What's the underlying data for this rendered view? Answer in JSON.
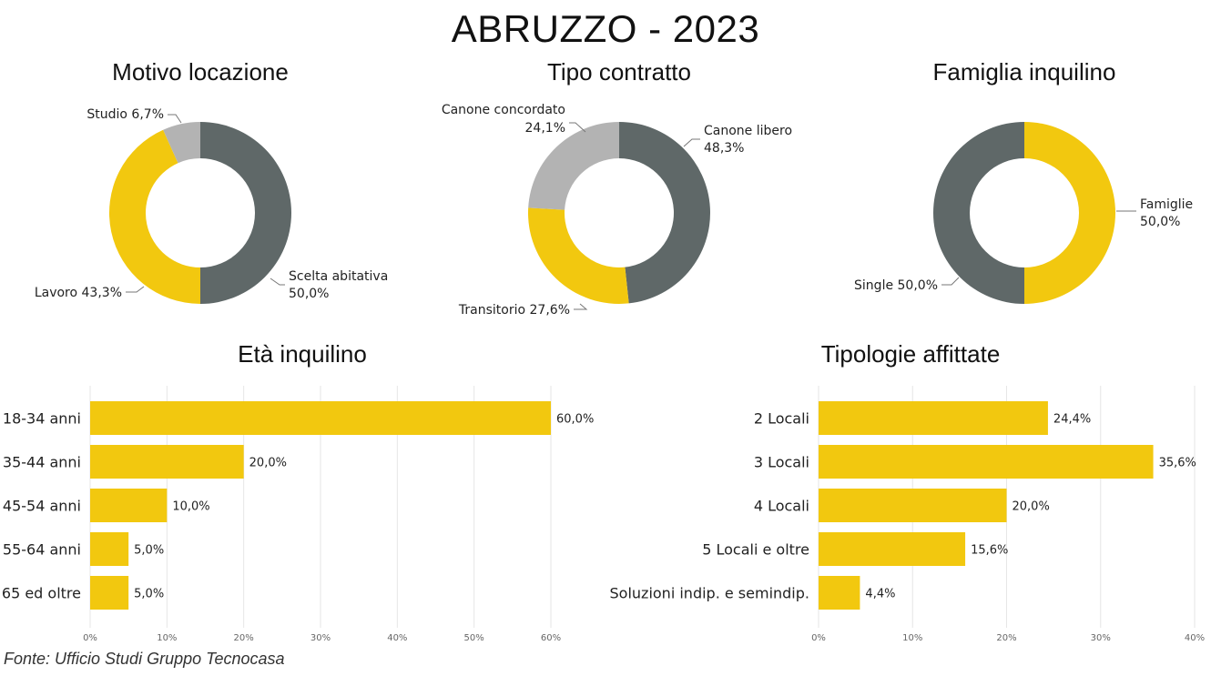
{
  "title": "ABRUZZO - 2023",
  "source": "Fonte: Ufficio Studi Gruppo Tecnocasa",
  "colors": {
    "dark": "#5f6868",
    "yellow": "#f2c80f",
    "light": "#b3b3b3",
    "grid": "#e6e6e6",
    "leader": "#777777"
  },
  "chart_data": [
    {
      "type": "pie",
      "title": "Motivo locazione",
      "donut": true,
      "slices": [
        {
          "label": "Scelta abitativa",
          "value": 50.0,
          "display": "50,0%",
          "color": "#5f6868"
        },
        {
          "label": "Lavoro",
          "value": 43.3,
          "display": "43,3%",
          "color": "#f2c80f"
        },
        {
          "label": "Studio",
          "value": 6.7,
          "display": "6,7%",
          "color": "#b3b3b3"
        }
      ]
    },
    {
      "type": "pie",
      "title": "Tipo contratto",
      "donut": true,
      "slices": [
        {
          "label": "Canone libero",
          "value": 48.3,
          "display": "48,3%",
          "color": "#5f6868"
        },
        {
          "label": "Transitorio",
          "value": 27.6,
          "display": "27,6%",
          "color": "#f2c80f"
        },
        {
          "label": "Canone concordato",
          "value": 24.1,
          "display": "24,1%",
          "color": "#b3b3b3"
        }
      ]
    },
    {
      "type": "pie",
      "title": "Famiglia inquilino",
      "donut": true,
      "slices": [
        {
          "label": "Famiglie",
          "value": 50.0,
          "display": "50,0%",
          "color": "#f2c80f"
        },
        {
          "label": "Single",
          "value": 50.0,
          "display": "50,0%",
          "color": "#5f6868"
        }
      ]
    },
    {
      "type": "bar",
      "orientation": "horizontal",
      "title": "Età inquilino",
      "categories": [
        "18-34 anni",
        "35-44 anni",
        "45-54 anni",
        "55-64 anni",
        "65 ed oltre"
      ],
      "values": [
        60.0,
        20.0,
        10.0,
        5.0,
        5.0
      ],
      "value_labels": [
        "60,0%",
        "20,0%",
        "10,0%",
        "5,0%",
        "5,0%"
      ],
      "xlim": [
        0,
        60
      ],
      "xticks": [
        0,
        10,
        20,
        30,
        40,
        50,
        60
      ],
      "xtick_labels": [
        "0%",
        "10%",
        "20%",
        "30%",
        "40%",
        "50%",
        "60%"
      ],
      "grid": true
    },
    {
      "type": "bar",
      "orientation": "horizontal",
      "title": "Tipologie affittate",
      "categories": [
        "2 Locali",
        "3 Locali",
        "4 Locali",
        "5 Locali e oltre",
        "Soluzioni indip. e semindip."
      ],
      "values": [
        24.4,
        35.6,
        20.0,
        15.6,
        4.4
      ],
      "value_labels": [
        "24,4%",
        "35,6%",
        "20,0%",
        "15,6%",
        "4,4%"
      ],
      "xlim": [
        0,
        40
      ],
      "xticks": [
        0,
        10,
        20,
        30,
        40
      ],
      "xtick_labels": [
        "0%",
        "10%",
        "20%",
        "30%",
        "40%"
      ],
      "grid": true
    }
  ]
}
